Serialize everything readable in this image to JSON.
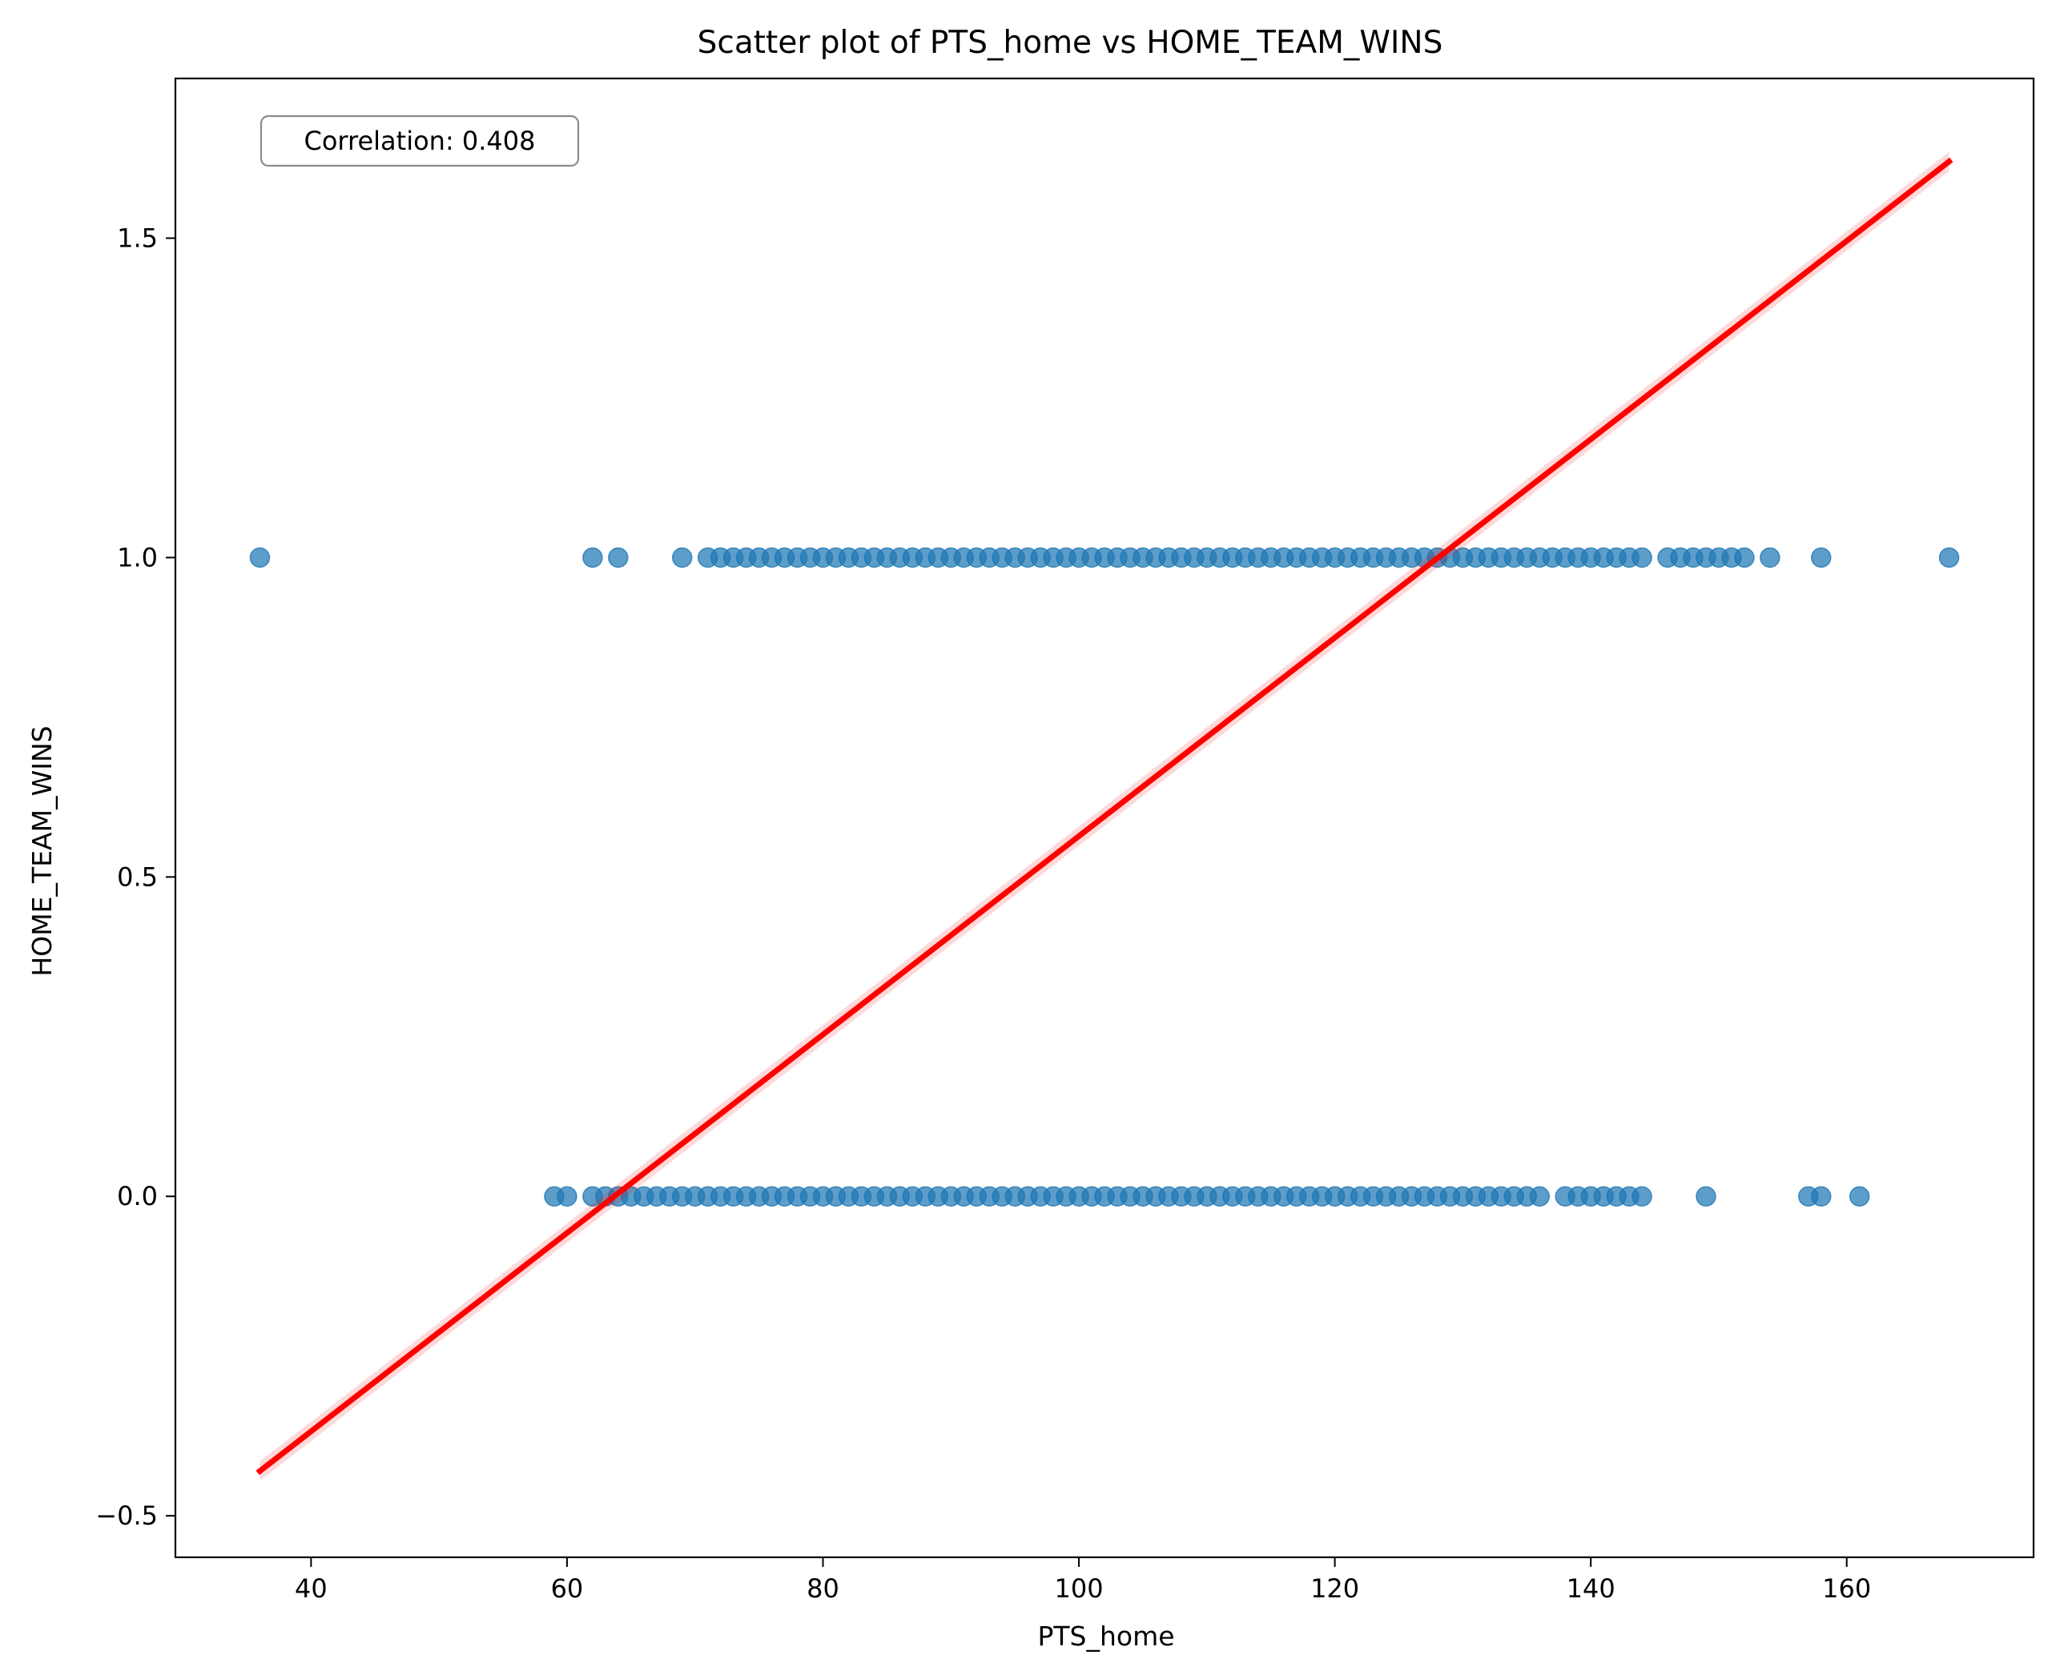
{
  "chart_data": {
    "type": "scatter",
    "title": "Scatter plot of PTS_home vs HOME_TEAM_WINS",
    "xlabel": "PTS_home",
    "ylabel": "HOME_TEAM_WINS",
    "xlim": [
      29.4,
      174.6
    ],
    "ylim": [
      -0.565,
      1.75
    ],
    "xticks": [
      40,
      60,
      80,
      100,
      120,
      140,
      160
    ],
    "xtick_labels": [
      "40",
      "60",
      "80",
      "100",
      "120",
      "140",
      "160"
    ],
    "yticks": [
      -0.5,
      0.0,
      0.5,
      1.0,
      1.5
    ],
    "ytick_labels": [
      "−0.5",
      "0.0",
      "0.5",
      "1.0",
      "1.5"
    ],
    "grid": false,
    "annotation": "Correlation: 0.408",
    "annotation_position": "top-left",
    "point_color": "#1f77b4",
    "line_color": "#ff0000",
    "series": [
      {
        "values": [
          [
            36,
            1
          ],
          [
            62,
            1
          ],
          [
            64,
            1
          ],
          [
            69,
            1
          ],
          [
            71,
            1
          ],
          [
            72,
            1
          ],
          [
            73,
            1
          ],
          [
            74,
            1
          ],
          [
            75,
            1
          ],
          [
            76,
            1
          ],
          [
            77,
            1
          ],
          [
            78,
            1
          ],
          [
            79,
            1
          ],
          [
            80,
            1
          ],
          [
            81,
            1
          ],
          [
            82,
            1
          ],
          [
            83,
            1
          ],
          [
            84,
            1
          ],
          [
            85,
            1
          ],
          [
            86,
            1
          ],
          [
            87,
            1
          ],
          [
            88,
            1
          ],
          [
            89,
            1
          ],
          [
            90,
            1
          ],
          [
            91,
            1
          ],
          [
            92,
            1
          ],
          [
            93,
            1
          ],
          [
            94,
            1
          ],
          [
            95,
            1
          ],
          [
            96,
            1
          ],
          [
            97,
            1
          ],
          [
            98,
            1
          ],
          [
            99,
            1
          ],
          [
            100,
            1
          ],
          [
            101,
            1
          ],
          [
            102,
            1
          ],
          [
            103,
            1
          ],
          [
            104,
            1
          ],
          [
            105,
            1
          ],
          [
            106,
            1
          ],
          [
            107,
            1
          ],
          [
            108,
            1
          ],
          [
            109,
            1
          ],
          [
            110,
            1
          ],
          [
            111,
            1
          ],
          [
            112,
            1
          ],
          [
            113,
            1
          ],
          [
            114,
            1
          ],
          [
            115,
            1
          ],
          [
            116,
            1
          ],
          [
            117,
            1
          ],
          [
            118,
            1
          ],
          [
            119,
            1
          ],
          [
            120,
            1
          ],
          [
            121,
            1
          ],
          [
            122,
            1
          ],
          [
            123,
            1
          ],
          [
            124,
            1
          ],
          [
            125,
            1
          ],
          [
            126,
            1
          ],
          [
            127,
            1
          ],
          [
            128,
            1
          ],
          [
            129,
            1
          ],
          [
            130,
            1
          ],
          [
            131,
            1
          ],
          [
            132,
            1
          ],
          [
            133,
            1
          ],
          [
            134,
            1
          ],
          [
            135,
            1
          ],
          [
            136,
            1
          ],
          [
            137,
            1
          ],
          [
            138,
            1
          ],
          [
            139,
            1
          ],
          [
            140,
            1
          ],
          [
            141,
            1
          ],
          [
            142,
            1
          ],
          [
            143,
            1
          ],
          [
            144,
            1
          ],
          [
            146,
            1
          ],
          [
            147,
            1
          ],
          [
            148,
            1
          ],
          [
            149,
            1
          ],
          [
            150,
            1
          ],
          [
            151,
            1
          ],
          [
            152,
            1
          ],
          [
            154,
            1
          ],
          [
            158,
            1
          ],
          [
            168,
            1
          ],
          [
            59,
            0
          ],
          [
            60,
            0
          ],
          [
            62,
            0
          ],
          [
            63,
            0
          ],
          [
            64,
            0
          ],
          [
            65,
            0
          ],
          [
            66,
            0
          ],
          [
            67,
            0
          ],
          [
            68,
            0
          ],
          [
            69,
            0
          ],
          [
            70,
            0
          ],
          [
            71,
            0
          ],
          [
            72,
            0
          ],
          [
            73,
            0
          ],
          [
            74,
            0
          ],
          [
            75,
            0
          ],
          [
            76,
            0
          ],
          [
            77,
            0
          ],
          [
            78,
            0
          ],
          [
            79,
            0
          ],
          [
            80,
            0
          ],
          [
            81,
            0
          ],
          [
            82,
            0
          ],
          [
            83,
            0
          ],
          [
            84,
            0
          ],
          [
            85,
            0
          ],
          [
            86,
            0
          ],
          [
            87,
            0
          ],
          [
            88,
            0
          ],
          [
            89,
            0
          ],
          [
            90,
            0
          ],
          [
            91,
            0
          ],
          [
            92,
            0
          ],
          [
            93,
            0
          ],
          [
            94,
            0
          ],
          [
            95,
            0
          ],
          [
            96,
            0
          ],
          [
            97,
            0
          ],
          [
            98,
            0
          ],
          [
            99,
            0
          ],
          [
            100,
            0
          ],
          [
            101,
            0
          ],
          [
            102,
            0
          ],
          [
            103,
            0
          ],
          [
            104,
            0
          ],
          [
            105,
            0
          ],
          [
            106,
            0
          ],
          [
            107,
            0
          ],
          [
            108,
            0
          ],
          [
            109,
            0
          ],
          [
            110,
            0
          ],
          [
            111,
            0
          ],
          [
            112,
            0
          ],
          [
            113,
            0
          ],
          [
            114,
            0
          ],
          [
            115,
            0
          ],
          [
            116,
            0
          ],
          [
            117,
            0
          ],
          [
            118,
            0
          ],
          [
            119,
            0
          ],
          [
            120,
            0
          ],
          [
            121,
            0
          ],
          [
            122,
            0
          ],
          [
            123,
            0
          ],
          [
            124,
            0
          ],
          [
            125,
            0
          ],
          [
            126,
            0
          ],
          [
            127,
            0
          ],
          [
            128,
            0
          ],
          [
            129,
            0
          ],
          [
            130,
            0
          ],
          [
            131,
            0
          ],
          [
            132,
            0
          ],
          [
            133,
            0
          ],
          [
            134,
            0
          ],
          [
            135,
            0
          ],
          [
            136,
            0
          ],
          [
            138,
            0
          ],
          [
            139,
            0
          ],
          [
            140,
            0
          ],
          [
            141,
            0
          ],
          [
            142,
            0
          ],
          [
            143,
            0
          ],
          [
            144,
            0
          ],
          [
            149,
            0
          ],
          [
            157,
            0
          ],
          [
            158,
            0
          ],
          [
            161,
            0
          ]
        ]
      }
    ],
    "regression_line": {
      "x": [
        36,
        168
      ],
      "y": [
        -0.43,
        1.62
      ]
    }
  }
}
